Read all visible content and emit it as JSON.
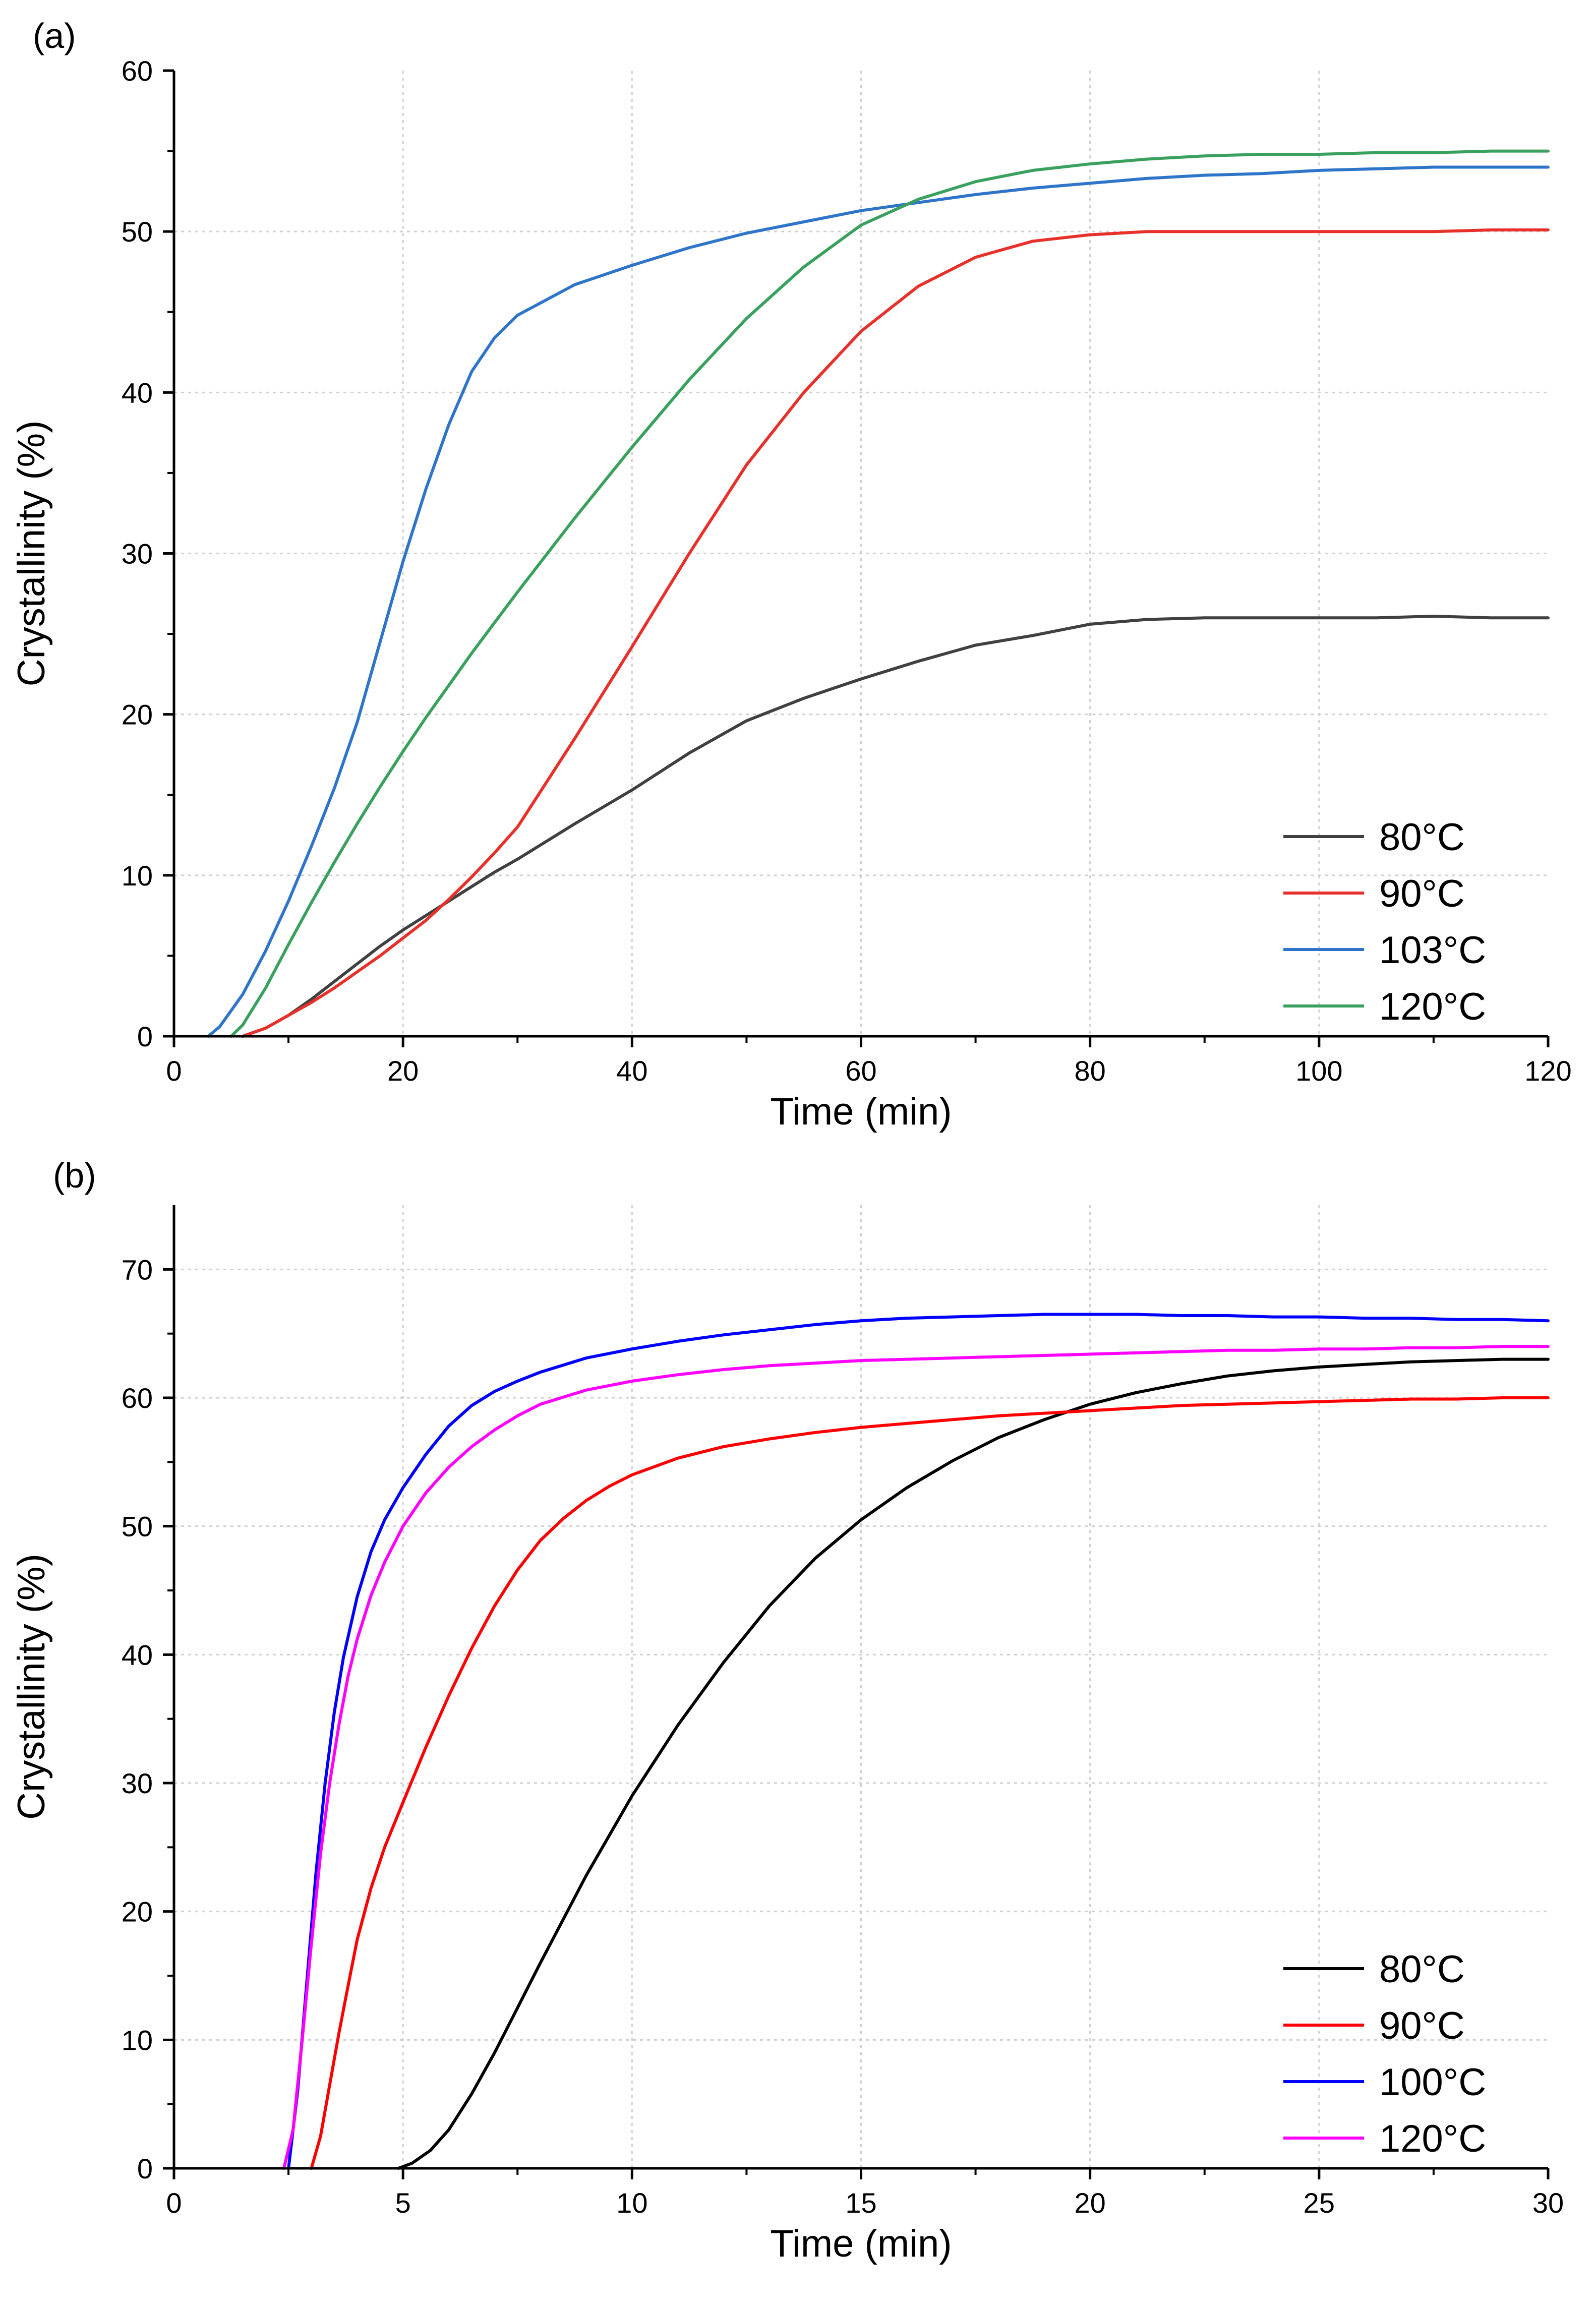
{
  "chart_data": [
    {
      "type": "line",
      "panel_label": "(a)",
      "title": "",
      "xlabel": "Time (min)",
      "ylabel": "Crystallinity (%)",
      "xlim": [
        0,
        120
      ],
      "ylim": [
        0,
        60
      ],
      "xticks": [
        0,
        20,
        40,
        60,
        80,
        100,
        120
      ],
      "yticks": [
        0,
        10,
        20,
        30,
        40,
        50,
        60
      ],
      "xtick_labels": [
        "0",
        "20",
        "40",
        "60",
        "80",
        "100",
        "120"
      ],
      "ytick_labels": [
        "0",
        "10",
        "20",
        "30",
        "40",
        "50",
        "60"
      ],
      "grid": true,
      "legend_position": "bottom-right",
      "series": [
        {
          "name": "80°C",
          "color": "#404040",
          "x": [
            6,
            8,
            10,
            12,
            14,
            16,
            18,
            20,
            22,
            24,
            26,
            28,
            30,
            35,
            40,
            45,
            50,
            55,
            60,
            65,
            70,
            75,
            80,
            85,
            90,
            95,
            100,
            105,
            110,
            115,
            120
          ],
          "y": [
            0,
            0.5,
            1.3,
            2.3,
            3.4,
            4.5,
            5.6,
            6.6,
            7.5,
            8.4,
            9.3,
            10.2,
            11.0,
            13.2,
            15.3,
            17.6,
            19.6,
            21.0,
            22.2,
            23.3,
            24.3,
            24.9,
            25.6,
            25.9,
            26.0,
            26.0,
            26.0,
            26.0,
            26.1,
            26.0,
            26.0
          ]
        },
        {
          "name": "90°C",
          "color": "#e8302a",
          "x": [
            6,
            8,
            10,
            12,
            14,
            16,
            18,
            20,
            22,
            24,
            26,
            28,
            30,
            35,
            40,
            45,
            50,
            55,
            60,
            65,
            70,
            75,
            80,
            85,
            90,
            95,
            100,
            105,
            110,
            115,
            120
          ],
          "y": [
            0,
            0.5,
            1.3,
            2.1,
            3.0,
            4.0,
            5.0,
            6.1,
            7.2,
            8.5,
            9.9,
            11.4,
            13.0,
            18.5,
            24.2,
            30.0,
            35.5,
            40.0,
            43.8,
            46.6,
            48.4,
            49.4,
            49.8,
            50.0,
            50.0,
            50.0,
            50.0,
            50.0,
            50.0,
            50.1,
            50.1
          ]
        },
        {
          "name": "103°C",
          "color": "#2e75c9",
          "x": [
            3,
            4,
            6,
            8,
            10,
            12,
            14,
            16,
            18,
            20,
            22,
            24,
            26,
            28,
            30,
            35,
            40,
            45,
            50,
            55,
            60,
            65,
            70,
            75,
            80,
            85,
            90,
            95,
            100,
            105,
            110,
            115,
            120
          ],
          "y": [
            0,
            0.6,
            2.6,
            5.3,
            8.4,
            11.8,
            15.4,
            19.5,
            24.5,
            29.5,
            34.0,
            38.0,
            41.3,
            43.4,
            44.8,
            46.7,
            47.9,
            49.0,
            49.9,
            50.6,
            51.3,
            51.8,
            52.3,
            52.7,
            53.0,
            53.3,
            53.5,
            53.6,
            53.8,
            53.9,
            54.0,
            54.0,
            54.0
          ]
        },
        {
          "name": "120°C",
          "color": "#3aa05e",
          "x": [
            5,
            6,
            8,
            10,
            12,
            14,
            16,
            18,
            20,
            22,
            24,
            26,
            28,
            30,
            35,
            40,
            45,
            50,
            55,
            60,
            65,
            70,
            75,
            80,
            85,
            90,
            95,
            100,
            105,
            110,
            115,
            120
          ],
          "y": [
            0,
            0.7,
            3.0,
            5.7,
            8.3,
            10.8,
            13.2,
            15.5,
            17.7,
            19.8,
            21.8,
            23.8,
            25.7,
            27.6,
            32.2,
            36.6,
            40.8,
            44.6,
            47.8,
            50.4,
            52.0,
            53.1,
            53.8,
            54.2,
            54.5,
            54.7,
            54.8,
            54.8,
            54.9,
            54.9,
            55.0,
            55.0
          ]
        }
      ]
    },
    {
      "type": "line",
      "panel_label": "(b)",
      "title": "",
      "xlabel": "Time (min)",
      "ylabel": "Crystallinity (%)",
      "xlim": [
        0,
        30
      ],
      "ylim": [
        0,
        75
      ],
      "xticks": [
        0,
        5,
        10,
        15,
        20,
        25,
        30
      ],
      "yticks": [
        0,
        10,
        20,
        30,
        40,
        50,
        60,
        70
      ],
      "xtick_labels": [
        "0",
        "5",
        "10",
        "15",
        "20",
        "25",
        "30"
      ],
      "ytick_labels": [
        "0",
        "10",
        "20",
        "30",
        "40",
        "50",
        "60",
        "70"
      ],
      "grid": true,
      "legend_position": "bottom-right",
      "series": [
        {
          "name": "80°C",
          "color": "#000000",
          "x": [
            4.9,
            5.2,
            5.6,
            6.0,
            6.5,
            7.0,
            7.5,
            8.0,
            9.0,
            10.0,
            11.0,
            12.0,
            13.0,
            14.0,
            15.0,
            16.0,
            17.0,
            18.0,
            19.0,
            20.0,
            21.0,
            22.0,
            23.0,
            24.0,
            25.0,
            26.0,
            27.0,
            28.0,
            29.0,
            30.0
          ],
          "y": [
            0,
            0.4,
            1.4,
            3.0,
            5.8,
            9.0,
            12.5,
            16.0,
            22.8,
            29.0,
            34.5,
            39.4,
            43.8,
            47.5,
            50.5,
            53.0,
            55.1,
            56.9,
            58.3,
            59.5,
            60.4,
            61.1,
            61.7,
            62.1,
            62.4,
            62.6,
            62.8,
            62.9,
            63.0,
            63.0
          ]
        },
        {
          "name": "90°C",
          "color": "#ff0000",
          "x": [
            3.0,
            3.2,
            3.4,
            3.6,
            3.8,
            4.0,
            4.3,
            4.6,
            5.0,
            5.5,
            6.0,
            6.5,
            7.0,
            7.5,
            8.0,
            8.5,
            9.0,
            9.5,
            10.0,
            11.0,
            12.0,
            13.0,
            14.0,
            15.0,
            16.0,
            17.0,
            18.0,
            19.0,
            20.0,
            21.0,
            22.0,
            23.0,
            24.0,
            25.0,
            26.0,
            27.0,
            28.0,
            29.0,
            30.0
          ],
          "y": [
            0,
            2.5,
            6.5,
            10.5,
            14.2,
            17.8,
            21.8,
            25.0,
            28.5,
            32.8,
            36.8,
            40.5,
            43.8,
            46.6,
            48.9,
            50.6,
            52.0,
            53.1,
            54.0,
            55.3,
            56.2,
            56.8,
            57.3,
            57.7,
            58.0,
            58.3,
            58.6,
            58.8,
            59.0,
            59.2,
            59.4,
            59.5,
            59.6,
            59.7,
            59.8,
            59.9,
            59.9,
            60.0,
            60.0
          ]
        },
        {
          "name": "100°C",
          "color": "#0000ff",
          "x": [
            2.5,
            2.7,
            2.9,
            3.1,
            3.3,
            3.5,
            3.7,
            4.0,
            4.3,
            4.6,
            5.0,
            5.5,
            6.0,
            6.5,
            7.0,
            7.5,
            8.0,
            9.0,
            10.0,
            11.0,
            12.0,
            13.0,
            14.0,
            15.0,
            16.0,
            17.0,
            18.0,
            19.0,
            20.0,
            21.0,
            22.0,
            23.0,
            24.0,
            25.0,
            26.0,
            27.0,
            28.0,
            29.0,
            30.0
          ],
          "y": [
            0,
            6.0,
            14.5,
            23.0,
            30.0,
            35.5,
            39.8,
            44.5,
            48.0,
            50.5,
            53.0,
            55.6,
            57.8,
            59.4,
            60.5,
            61.3,
            62.0,
            63.1,
            63.8,
            64.4,
            64.9,
            65.3,
            65.7,
            66.0,
            66.2,
            66.3,
            66.4,
            66.5,
            66.5,
            66.5,
            66.4,
            66.4,
            66.3,
            66.3,
            66.2,
            66.2,
            66.1,
            66.1,
            66.0
          ]
        },
        {
          "name": "120°C",
          "color": "#ff00ff",
          "x": [
            2.4,
            2.6,
            2.8,
            3.0,
            3.2,
            3.4,
            3.6,
            3.8,
            4.0,
            4.3,
            4.6,
            5.0,
            5.5,
            6.0,
            6.5,
            7.0,
            7.5,
            8.0,
            9.0,
            10.0,
            11.0,
            12.0,
            13.0,
            14.0,
            15.0,
            16.0,
            17.0,
            18.0,
            19.0,
            20.0,
            21.0,
            22.0,
            23.0,
            24.0,
            25.0,
            26.0,
            27.0,
            28.0,
            29.0,
            30.0
          ],
          "y": [
            0,
            3.0,
            10.0,
            17.5,
            24.5,
            30.0,
            34.5,
            38.3,
            41.2,
            44.6,
            47.2,
            50.0,
            52.6,
            54.6,
            56.2,
            57.5,
            58.6,
            59.5,
            60.6,
            61.3,
            61.8,
            62.2,
            62.5,
            62.7,
            62.9,
            63.0,
            63.1,
            63.2,
            63.3,
            63.4,
            63.5,
            63.6,
            63.7,
            63.7,
            63.8,
            63.8,
            63.9,
            63.9,
            64.0,
            64.0
          ]
        }
      ]
    }
  ]
}
